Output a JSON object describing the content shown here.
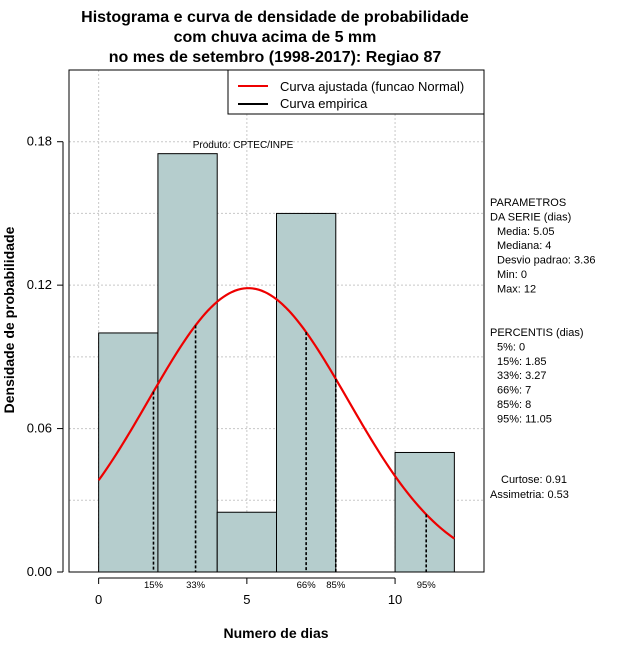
{
  "chart_data": {
    "type": "bar",
    "title_lines": [
      "Histograma e curva de densidade de probabilidade",
      "com chuva acima de 5 mm",
      "no mes de setembro (1998-2017): Regiao 87"
    ],
    "xlabel": "Numero de dias",
    "ylabel": "Densidade de probabilidade",
    "xlim": [
      -1,
      13
    ],
    "ylim": [
      0,
      0.21
    ],
    "x_ticks": [
      "0",
      "5",
      "10"
    ],
    "x_tick_values": [
      0,
      5,
      10
    ],
    "y_ticks": [
      "0.00",
      "0.06",
      "0.12",
      "0.18"
    ],
    "y_tick_values": [
      0.0,
      0.06,
      0.12,
      0.18
    ],
    "grid": true,
    "bins": [
      {
        "from": 0,
        "to": 2,
        "density": 0.1
      },
      {
        "from": 2,
        "to": 4,
        "density": 0.175
      },
      {
        "from": 4,
        "to": 6,
        "density": 0.025
      },
      {
        "from": 6,
        "to": 8,
        "density": 0.15
      },
      {
        "from": 8,
        "to": 10,
        "density": 0.0
      },
      {
        "from": 10,
        "to": 12,
        "density": 0.05
      }
    ],
    "bar_color": "#b5cdcd",
    "normal_curve": {
      "name": "Curva ajustada (funcao Normal)",
      "color": "#ee0000",
      "mean": 5.05,
      "sd": 3.36,
      "x_range": [
        0,
        12
      ]
    },
    "empirical_curve": {
      "name": "Curva empirica",
      "color": "#000000"
    },
    "legend": {
      "position": "top-right",
      "entries": [
        "Curva ajustada (funcao Normal)",
        "Curva empirica"
      ]
    },
    "product_label": "Produto: CPTEC/INPE",
    "percentile_marks": [
      {
        "label": "15%",
        "x": 1.85
      },
      {
        "label": "33%",
        "x": 3.27
      },
      {
        "label": "66%",
        "x": 7
      },
      {
        "label": "85%",
        "x": 8
      },
      {
        "label": "95%",
        "x": 11.05
      }
    ],
    "side_panel": {
      "parametros": [
        "PARAMETROS",
        "DA SERIE (dias)",
        "Media: 5.05",
        "Mediana: 4",
        "Desvio padrao: 3.36",
        "Min: 0",
        "Max: 12"
      ],
      "percentis": [
        "PERCENTIS (dias)",
        "5%: 0",
        "15%: 1.85",
        "33%: 3.27",
        "66%: 7",
        "85%: 8",
        "95%: 11.05"
      ],
      "curtose": "Curtose: 0.91",
      "assimetria": "Assimetria: 0.53"
    }
  }
}
